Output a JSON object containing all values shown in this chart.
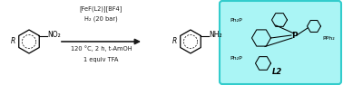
{
  "bg_color": "#ffffff",
  "ligand_box_bg": "#aaf5f5",
  "ligand_box_border": "#33cccc",
  "arrow_color": "#1a1a1a",
  "text_color": "#1a1a1a",
  "above_arrow_line1": "[FeF(L2)][BF4]",
  "above_arrow_line2": "H₂ (20 bar)",
  "below_arrow_line1": "120 °C, 2 h, t-AmOH",
  "below_arrow_line2": "1 equiv TFA",
  "text_fontsize": 4.8,
  "label_L2": "L2",
  "Ph2P_top_left": "Ph₂P",
  "PPh2_right": "PPh₂",
  "Ph2P_bottom": "Ph₂P",
  "P_center": "P"
}
